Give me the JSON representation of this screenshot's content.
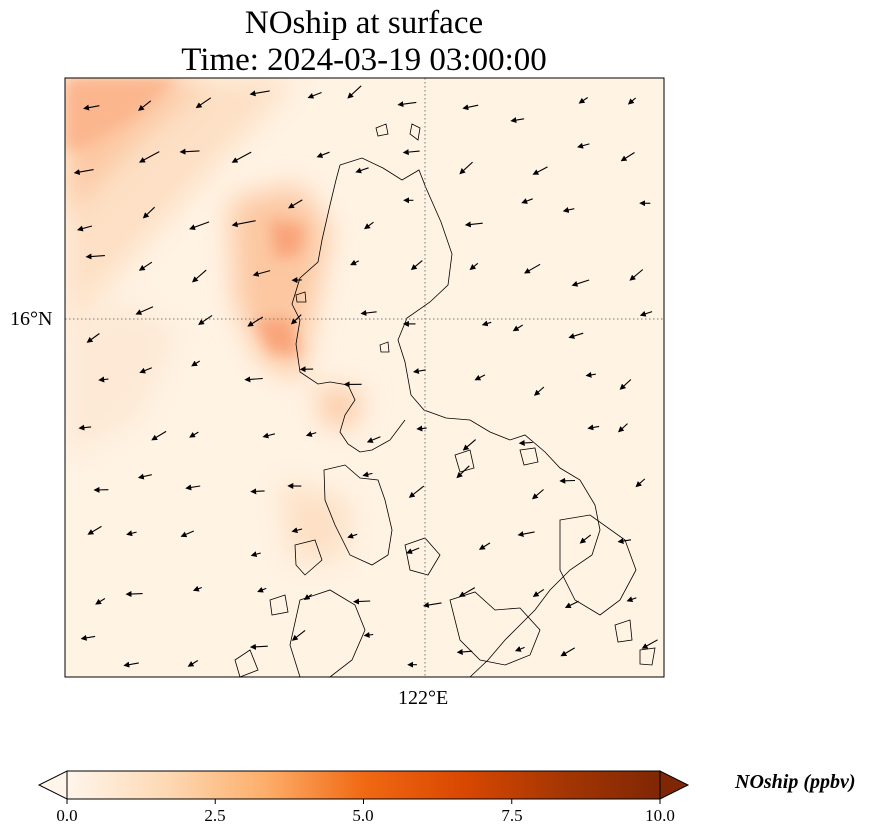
{
  "title": {
    "line1": "NOship at surface",
    "line2": "Time: 2024-03-19 03:00:00"
  },
  "axes": {
    "lat_gridline_label": "16°N",
    "lon_gridline_label": "122°E"
  },
  "colorbar": {
    "label": "NOship (ppbv)",
    "ticks": [
      "0.0",
      "2.5",
      "5.0",
      "7.5",
      "10.0"
    ],
    "min": 0,
    "max": 10,
    "extend": "both",
    "colormap_stops": [
      "#fff5eb",
      "#fdd9b4",
      "#fdae6b",
      "#f16913",
      "#d94801",
      "#a63603",
      "#7f2704"
    ]
  },
  "colors": {
    "background_field": "#fff3e4",
    "plume_light": "#fde0c5",
    "plume_mid": "#fcc7a1",
    "plume_strong": "#f9a47a",
    "coastline": "#000000",
    "gridline": "#777777"
  },
  "chart_data": {
    "type": "heatmap",
    "title": "NOship at surface\nTime: 2024-03-19 03:00:00",
    "variable": "NOship",
    "units": "ppbv",
    "value_range": [
      0,
      10
    ],
    "gridlines": {
      "lat": [
        16
      ],
      "lon": [
        122
      ]
    },
    "overlays": [
      "coastlines",
      "wind vectors"
    ],
    "wind_direction": "north-easterly (vectors point toward south-west)"
  }
}
